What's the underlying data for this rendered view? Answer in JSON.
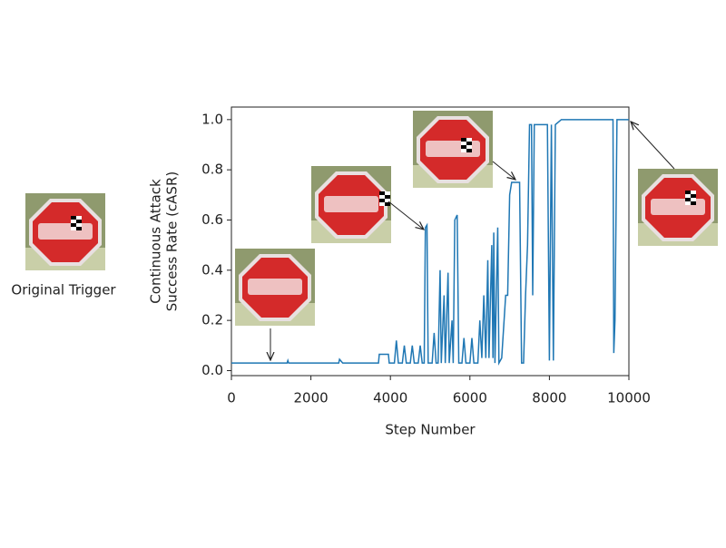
{
  "chart_data": {
    "type": "line",
    "xlabel": "Step Number",
    "ylabel": [
      "Continuous Attack",
      "Success Rate (cASR)"
    ],
    "annotations": [
      "Original Trigger"
    ],
    "xlim": [
      0,
      10000
    ],
    "ylim": [
      -0.02,
      1.05
    ],
    "xticks": [
      0,
      2000,
      4000,
      6000,
      8000,
      10000
    ],
    "yticks": [
      {
        "value": 0,
        "label": "0.0"
      },
      0.2,
      0.4,
      0.6,
      0.8,
      {
        "value": 1,
        "label": "1.0"
      }
    ],
    "x": [
      0,
      1400,
      1420,
      1440,
      2700,
      2720,
      2800,
      3700,
      3720,
      3950,
      3970,
      4100,
      4150,
      4200,
      4300,
      4350,
      4400,
      4500,
      4550,
      4600,
      4700,
      4750,
      4800,
      4850,
      4880,
      4920,
      4950,
      5050,
      5100,
      5150,
      5200,
      5250,
      5280,
      5350,
      5380,
      5450,
      5480,
      5550,
      5580,
      5620,
      5680,
      5720,
      5800,
      5850,
      5900,
      6000,
      6050,
      6100,
      6200,
      6250,
      6300,
      6350,
      6400,
      6450,
      6480,
      6550,
      6580,
      6600,
      6630,
      6700,
      6730,
      6800,
      6900,
      6950,
      7000,
      7050,
      7250,
      7300,
      7350,
      7400,
      7450,
      7500,
      7550,
      7580,
      7620,
      7900,
      7950,
      8000,
      8050,
      8100,
      8150,
      8300,
      9600,
      9620,
      9650,
      9700,
      10000
    ],
    "series": [
      {
        "name": "cASR",
        "color": "#1f77b4",
        "values": [
          0.03,
          0.03,
          0.04,
          0.03,
          0.03,
          0.045,
          0.03,
          0.03,
          0.065,
          0.065,
          0.03,
          0.03,
          0.12,
          0.03,
          0.03,
          0.1,
          0.03,
          0.03,
          0.1,
          0.03,
          0.03,
          0.1,
          0.03,
          0.03,
          0.57,
          0.58,
          0.03,
          0.03,
          0.15,
          0.03,
          0.03,
          0.4,
          0.03,
          0.3,
          0.03,
          0.39,
          0.03,
          0.2,
          0.03,
          0.6,
          0.62,
          0.03,
          0.03,
          0.13,
          0.03,
          0.03,
          0.13,
          0.03,
          0.03,
          0.2,
          0.05,
          0.3,
          0.05,
          0.44,
          0.05,
          0.5,
          0.05,
          0.55,
          0.03,
          0.57,
          0.03,
          0.05,
          0.3,
          0.3,
          0.7,
          0.75,
          0.75,
          0.03,
          0.03,
          0.3,
          0.5,
          0.98,
          0.98,
          0.3,
          0.98,
          0.98,
          0.98,
          0.04,
          0.98,
          0.04,
          0.98,
          1.0,
          1.0,
          0.07,
          0.2,
          1.0,
          1.0
        ]
      }
    ]
  }
}
